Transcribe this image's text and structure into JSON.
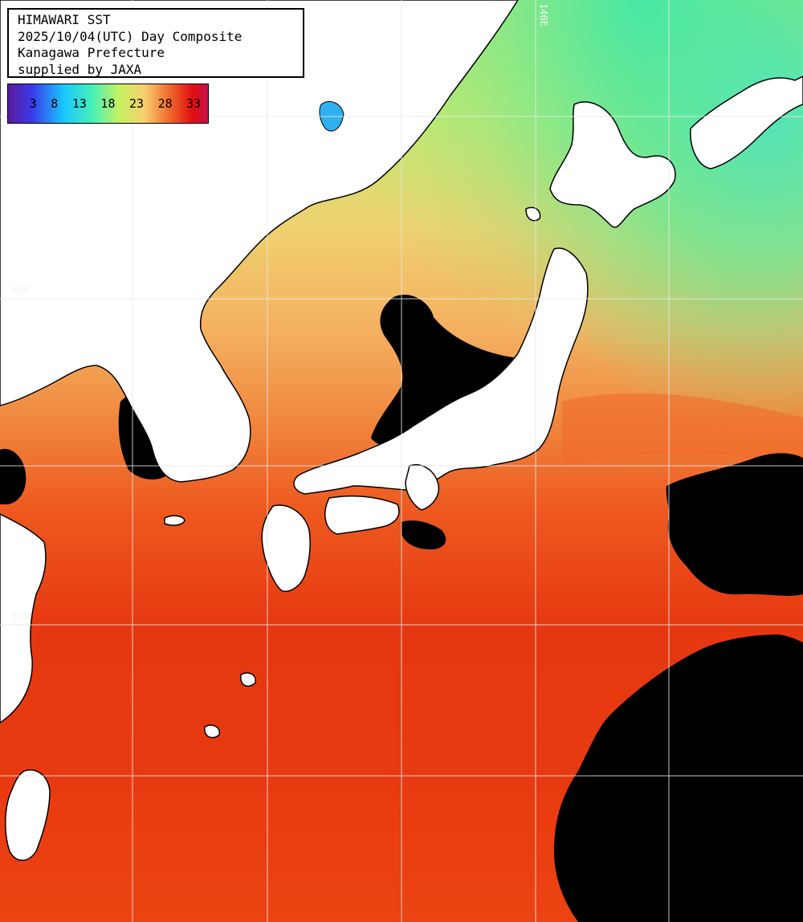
{
  "header": {
    "line1": "HIMAWARI SST",
    "line2": "2025/10/04(UTC) Day Composite",
    "line3": "Kanagawa Prefecture",
    "line4": "supplied by JAXA"
  },
  "color_scale": {
    "ticks": [
      "3",
      "8",
      "13",
      "18",
      "23",
      "28",
      "33"
    ],
    "gradient_colors": [
      "#5a1a9c",
      "#3a3ae8",
      "#18c8ff",
      "#46f0b8",
      "#c8f060",
      "#f8d070",
      "#f07030",
      "#e01010",
      "#c8104a"
    ]
  },
  "grid_labels": {
    "lon_140": "140E",
    "lat_40": "40N",
    "lat_30": "30N"
  },
  "colors": {
    "land": "#ffffff",
    "cloud": "#000000",
    "grid": "#e8e8e8",
    "coast": "#000000"
  }
}
